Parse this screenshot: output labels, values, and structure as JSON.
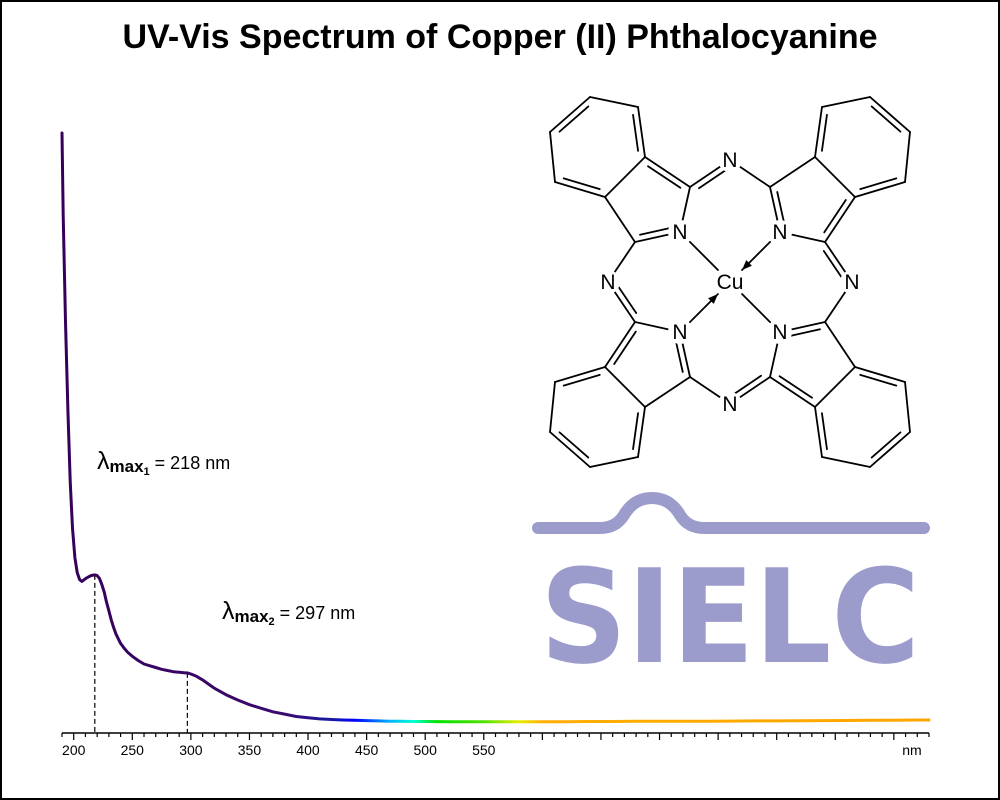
{
  "chart_data": {
    "type": "line",
    "title": "UV-Vis Spectrum of Copper (II) Phthalocyanine",
    "xlabel": "nm",
    "ylabel": "",
    "xlim": [
      190,
      930
    ],
    "ylim": [
      0,
      1
    ],
    "x_ticks": [
      200,
      250,
      300,
      350,
      400,
      450,
      500,
      550
    ],
    "x_tick_labels": [
      "200",
      "250",
      "300",
      "350",
      "400",
      "450",
      "500",
      "550"
    ],
    "grid": false,
    "legend": "none",
    "series": [
      {
        "x": [
          190,
          191,
          193,
          195,
          197,
          199,
          201,
          203,
          205,
          207,
          209,
          211,
          213,
          215,
          218,
          220,
          222,
          224,
          226,
          228,
          230,
          232,
          234,
          236,
          238,
          240,
          243,
          246,
          250,
          255,
          260,
          265,
          270,
          275,
          280,
          285,
          290,
          295,
          297,
          300,
          305,
          310,
          315,
          320,
          330,
          340,
          350,
          360,
          370,
          380,
          390,
          400,
          410,
          420,
          430,
          440,
          450,
          460,
          470,
          480,
          490,
          500,
          520,
          540,
          560,
          580,
          600,
          620,
          640,
          660,
          680,
          700,
          720,
          740,
          760,
          780,
          800,
          820,
          840,
          860,
          880,
          900,
          920,
          930
        ],
        "y": [
          1.0,
          0.86,
          0.68,
          0.53,
          0.41,
          0.33,
          0.28,
          0.255,
          0.243,
          0.24,
          0.243,
          0.246,
          0.248,
          0.25,
          0.251,
          0.25,
          0.245,
          0.235,
          0.222,
          0.205,
          0.19,
          0.175,
          0.162,
          0.151,
          0.143,
          0.135,
          0.127,
          0.12,
          0.113,
          0.106,
          0.1,
          0.097,
          0.094,
          0.091,
          0.089,
          0.087,
          0.086,
          0.085,
          0.085,
          0.083,
          0.079,
          0.073,
          0.066,
          0.059,
          0.048,
          0.039,
          0.031,
          0.025,
          0.019,
          0.015,
          0.011,
          0.009,
          0.007,
          0.006,
          0.005,
          0.0045,
          0.004,
          0.0035,
          0.003,
          0.003,
          0.0025,
          0.0025,
          0.002,
          0.002,
          0.002,
          0.002,
          0.002,
          0.0022,
          0.0025,
          0.0025,
          0.0028,
          0.0028,
          0.003,
          0.003,
          0.0032,
          0.0035,
          0.0035,
          0.0038,
          0.004,
          0.0042,
          0.0045,
          0.0048,
          0.005,
          0.005
        ]
      }
    ],
    "annotations": [
      {
        "prefix": "λ",
        "sub_main": "max",
        "sub_index": "1",
        "text": " = 218 nm",
        "x": 218
      },
      {
        "prefix": "λ",
        "sub_main": "max",
        "sub_index": "2",
        "text": " = 297 nm",
        "x": 297
      }
    ],
    "line_color_ramp": [
      {
        "nm": 190,
        "color": "#36005a"
      },
      {
        "nm": 380,
        "color": "#3a0a6e"
      },
      {
        "nm": 420,
        "color": "#1a1aa0"
      },
      {
        "nm": 440,
        "color": "#0000ff"
      },
      {
        "nm": 470,
        "color": "#00b4ff"
      },
      {
        "nm": 490,
        "color": "#00ffd2"
      },
      {
        "nm": 510,
        "color": "#00e000"
      },
      {
        "nm": 550,
        "color": "#52e000"
      },
      {
        "nm": 580,
        "color": "#e6ee00"
      },
      {
        "nm": 600,
        "color": "#ffae00"
      },
      {
        "nm": 930,
        "color": "#ffa500"
      }
    ]
  },
  "molecule": {
    "center_atom": "Cu",
    "n_label": "N"
  },
  "logo": {
    "text": "SIELC",
    "color": "#9c9ccc"
  }
}
